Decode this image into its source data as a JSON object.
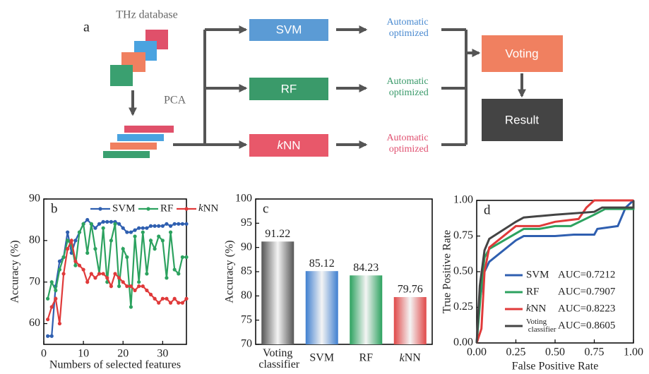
{
  "diagram": {
    "panel_label": "a",
    "database_label": "THz database",
    "reduction_label": "PCA",
    "classifiers": [
      {
        "label": "SVM",
        "status": "Automatic optimized"
      },
      {
        "label": "RF",
        "status": "Automatic optimized"
      },
      {
        "label": "kNN",
        "status": "Automatic optimized"
      }
    ],
    "ensemble": "Voting",
    "output": "Result"
  },
  "chart_data": [
    {
      "type": "line",
      "panel_label": "b",
      "x_label": "Numbers of selected features",
      "y_label": "Accuracy (%)",
      "x": [
        1,
        2,
        3,
        4,
        5,
        6,
        7,
        8,
        9,
        10,
        11,
        12,
        13,
        14,
        15,
        16,
        17,
        18,
        19,
        20,
        21,
        22,
        23,
        24,
        25,
        26,
        27,
        28,
        29,
        30,
        31,
        32,
        33,
        34,
        35,
        36
      ],
      "xlim": [
        0,
        36
      ],
      "ylim": [
        55,
        90
      ],
      "xticks": [
        0,
        10,
        20,
        30
      ],
      "yticks": [
        60,
        70,
        80,
        90
      ],
      "legend": "upper center",
      "series": [
        {
          "name": "SVM",
          "color": "#2f5fb0",
          "values": [
            57,
            57,
            69,
            75,
            76,
            82,
            77,
            80,
            82,
            84,
            85,
            84,
            83,
            84,
            84.5,
            84.5,
            84.5,
            84.5,
            84,
            83,
            82,
            82,
            82.5,
            83,
            83,
            83,
            83.5,
            83.5,
            83.5,
            83.5,
            84,
            83.5,
            84,
            84,
            84,
            84
          ]
        },
        {
          "name": "RF",
          "color": "#2ca25f",
          "values": [
            66,
            70,
            68,
            73,
            76,
            80,
            79,
            74,
            82,
            84,
            77,
            84,
            78,
            72,
            83,
            70,
            80,
            84,
            69,
            78,
            76,
            64,
            81,
            70,
            82,
            72,
            80,
            78,
            81,
            80,
            71,
            82,
            73,
            72,
            76,
            76
          ]
        },
        {
          "name": "kNN",
          "color": "#e03a3a",
          "values": [
            61,
            64,
            66,
            60,
            72,
            78,
            80,
            75,
            74,
            73,
            70,
            72,
            71,
            72,
            72,
            71,
            69,
            72,
            71,
            70,
            69,
            69,
            68,
            69,
            69,
            68,
            67,
            66,
            65,
            66,
            66,
            65,
            66,
            65,
            65,
            66
          ]
        }
      ]
    },
    {
      "type": "bar",
      "panel_label": "c",
      "y_label": "Accuracy (%)",
      "categories": [
        "Voting classifier",
        "SVM",
        "RF",
        "kNN"
      ],
      "values": [
        91.22,
        85.12,
        84.23,
        79.76
      ],
      "colors": [
        "#555555",
        "#3f7fd0",
        "#2ca25f",
        "#e04848"
      ],
      "ylim": [
        70,
        100
      ],
      "yticks": [
        70,
        75,
        80,
        85,
        90,
        95,
        100
      ]
    },
    {
      "type": "line",
      "panel_label": "d",
      "x_label": "False Positive Rate",
      "y_label": "True Positive Rate",
      "xlim": [
        0,
        1
      ],
      "ylim": [
        0,
        1
      ],
      "xticks": [
        {
          "value": 0,
          "label": "0.00"
        },
        {
          "value": 0.25,
          "label": "0.25"
        },
        {
          "value": 0.5,
          "label": "0.50"
        },
        {
          "value": 0.75,
          "label": "0.75"
        },
        {
          "value": 1,
          "label": "1.00"
        }
      ],
      "yticks": [
        {
          "value": 0,
          "label": "0.00"
        },
        {
          "value": 0.25,
          "label": "0.25"
        },
        {
          "value": 0.5,
          "label": "0.50"
        },
        {
          "value": 0.75,
          "label": "0.75"
        },
        {
          "value": 1,
          "label": "1.00"
        }
      ],
      "legend": "lower right",
      "series": [
        {
          "name": "SVM",
          "color": "#2f5fb0",
          "auc_label": "AUC=0.7212",
          "x": [
            0,
            0.02,
            0.05,
            0.08,
            0.25,
            0.3,
            0.5,
            0.62,
            0.75,
            0.77,
            0.9,
            0.95,
            1
          ],
          "values": [
            0,
            0.3,
            0.5,
            0.57,
            0.72,
            0.75,
            0.75,
            0.76,
            0.76,
            0.8,
            0.82,
            0.95,
            1
          ]
        },
        {
          "name": "RF",
          "color": "#2ca25f",
          "auc_label": "AUC=0.7907",
          "x": [
            0,
            0.03,
            0.05,
            0.08,
            0.3,
            0.4,
            0.5,
            0.6,
            0.75,
            0.82,
            1,
            1
          ],
          "values": [
            0,
            0.4,
            0.6,
            0.66,
            0.8,
            0.8,
            0.82,
            0.82,
            0.9,
            0.94,
            0.94,
            1
          ]
        },
        {
          "name": "kNN",
          "color": "#e03a3a",
          "auc_label": "AUC=0.8223",
          "x": [
            0,
            0.03,
            0.05,
            0.08,
            0.25,
            0.4,
            0.5,
            0.65,
            0.7,
            0.75,
            1
          ],
          "values": [
            0,
            0.1,
            0.5,
            0.67,
            0.82,
            0.82,
            0.85,
            0.87,
            0.95,
            1,
            1
          ]
        },
        {
          "name": "Voting classifier",
          "color": "#444444",
          "auc_label": "AUC=0.8605",
          "x": [
            0,
            0.02,
            0.05,
            0.08,
            0.25,
            0.3,
            0.4,
            0.5,
            0.75,
            0.8,
            1,
            1
          ],
          "values": [
            0,
            0.4,
            0.65,
            0.73,
            0.85,
            0.88,
            0.89,
            0.9,
            0.92,
            0.95,
            0.95,
            1
          ]
        }
      ]
    }
  ]
}
